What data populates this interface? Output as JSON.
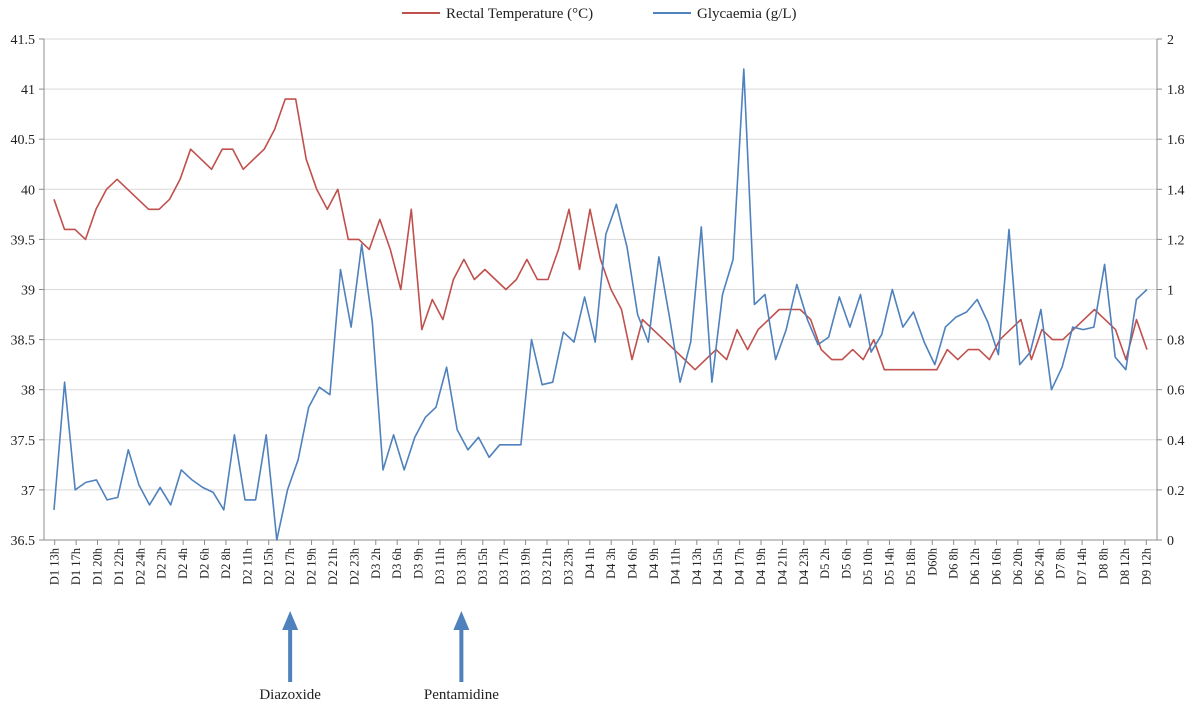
{
  "colors": {
    "temperature": "#c0504d",
    "glycaemia": "#4f81bd",
    "arrow": "#4f81bd",
    "grid": "#d9d9d9",
    "axis": "#8c8c8c"
  },
  "chart_data": {
    "type": "line",
    "title": "",
    "legend": {
      "placement": "top-center",
      "entries": [
        "Rectal Temperature (°C)",
        "Glycaemia (g/L)"
      ]
    },
    "grid": true,
    "y_left": {
      "range": [
        36.5,
        41.5
      ],
      "ticks": [
        "36.5",
        "37",
        "37.5",
        "38",
        "38.5",
        "39",
        "39.5",
        "40",
        "40.5",
        "41",
        "41.5"
      ]
    },
    "y_right": {
      "range": [
        0,
        2
      ],
      "ticks": [
        "0",
        "0.2",
        "0.4",
        "0.6",
        "0.8",
        "1",
        "1.2",
        "1.4",
        "1.6",
        "1.8",
        "2"
      ]
    },
    "x_ticks": [
      "D1 13h",
      "D1 17h",
      "D1 20h",
      "D1 22h",
      "D2 24h",
      "D2 2h",
      "D2 4h",
      "D2 6h",
      "D2 8h",
      "D2 11h",
      "D2 15h",
      "D2 17h",
      "D2 19h",
      "D2 21h",
      "D2 23h",
      "D3 2h",
      "D3 6h",
      "D3 9h",
      "D3 11h",
      "D3 13h",
      "D3 15h",
      "D3 17h",
      "D3 19h",
      "D3 21h",
      "D3 23h",
      "D4 1h",
      "D4 3h",
      "D4 6h",
      "D4 9h",
      "D4 11h",
      "D4 13h",
      "D4 15h",
      "D4 17h",
      "D4 19h",
      "D4 21h",
      "D4 23h",
      "D5 2h",
      "D5 6h",
      "D5 10h",
      "D5 14h",
      "D5 18h",
      "D60h",
      "D6 8h",
      "D6 12h",
      "D6 16h",
      "D6 20h",
      "D6 24h",
      "D7 8h",
      "D7 14h",
      "D8 8h",
      "D8 12h",
      "D9 12h"
    ],
    "series": [
      {
        "name": "Rectal Temperature (°C)",
        "axis": "left",
        "values": [
          39.9,
          39.6,
          39.6,
          39.5,
          39.8,
          40.0,
          40.1,
          40.0,
          39.9,
          39.8,
          39.8,
          39.9,
          40.1,
          40.4,
          40.3,
          40.2,
          40.4,
          40.4,
          40.2,
          40.3,
          40.4,
          40.6,
          40.9,
          40.9,
          40.3,
          40.0,
          39.8,
          40.0,
          39.5,
          39.5,
          39.4,
          39.7,
          39.4,
          39.0,
          39.8,
          38.6,
          38.9,
          38.7,
          39.1,
          39.3,
          39.1,
          39.2,
          39.1,
          39.0,
          39.1,
          39.3,
          39.1,
          39.1,
          39.4,
          39.8,
          39.2,
          39.8,
          39.3,
          39.0,
          38.8,
          38.3,
          38.7,
          38.6,
          38.5,
          38.4,
          38.3,
          38.2,
          38.3,
          38.4,
          38.3,
          38.6,
          38.4,
          38.6,
          38.7,
          38.8,
          38.8,
          38.8,
          38.7,
          38.4,
          38.3,
          38.3,
          38.4,
          38.3,
          38.5,
          38.2,
          38.2,
          38.2,
          38.2,
          38.2,
          38.2,
          38.4,
          38.3,
          38.4,
          38.4,
          38.3,
          38.5,
          38.6,
          38.7,
          38.3,
          38.6,
          38.5,
          38.5,
          38.6,
          38.7,
          38.8,
          38.7,
          38.6,
          38.3,
          38.7,
          38.4
        ]
      },
      {
        "name": "Glycaemia (g/L)",
        "axis": "right",
        "values": [
          0.12,
          0.63,
          0.2,
          0.23,
          0.24,
          0.16,
          0.17,
          0.36,
          0.22,
          0.14,
          0.21,
          0.14,
          0.28,
          0.24,
          0.21,
          0.19,
          0.12,
          0.42,
          0.16,
          0.16,
          0.42,
          0.0,
          0.2,
          0.32,
          0.53,
          0.61,
          0.58,
          1.08,
          0.85,
          1.18,
          0.87,
          0.28,
          0.42,
          0.28,
          0.41,
          0.49,
          0.53,
          0.69,
          0.44,
          0.36,
          0.41,
          0.33,
          0.38,
          0.38,
          0.38,
          0.8,
          0.62,
          0.63,
          0.83,
          0.79,
          0.97,
          0.79,
          1.22,
          1.34,
          1.17,
          0.9,
          0.79,
          1.13,
          0.89,
          0.63,
          0.79,
          1.25,
          0.63,
          0.98,
          1.12,
          1.88,
          0.94,
          0.98,
          0.72,
          0.84,
          1.02,
          0.88,
          0.78,
          0.81,
          0.97,
          0.85,
          0.98,
          0.75,
          0.82,
          1.0,
          0.85,
          0.91,
          0.79,
          0.7,
          0.85,
          0.89,
          0.91,
          0.96,
          0.87,
          0.74,
          1.24,
          0.7,
          0.75,
          0.92,
          0.6,
          0.69,
          0.85,
          0.84,
          0.85,
          1.1,
          0.73,
          0.68,
          0.96,
          1.0
        ]
      }
    ],
    "annotations": [
      {
        "label": "Diazoxide",
        "at_tick": "D2 17h"
      },
      {
        "label": "Pentamidine",
        "at_tick": "D3 13h"
      }
    ]
  }
}
